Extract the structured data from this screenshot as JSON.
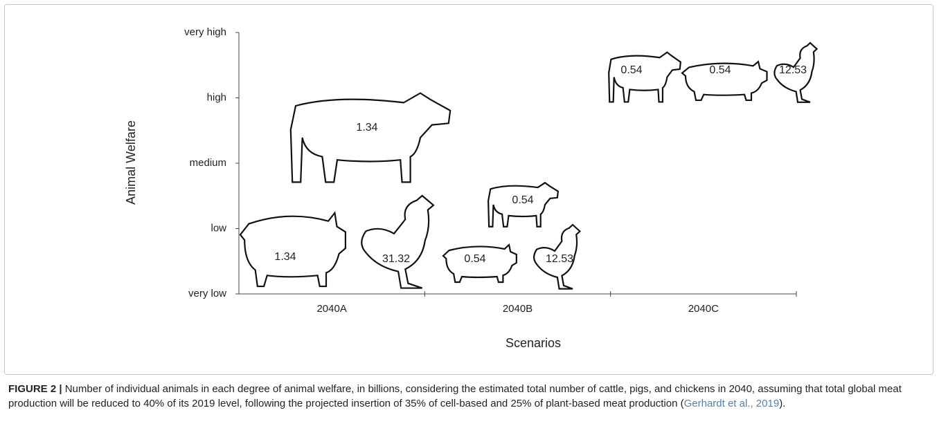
{
  "chart_data": {
    "type": "pictogram",
    "ylabel": "Animal Welfare",
    "xlabel": "Scenarios",
    "categories": [
      "2040A",
      "2040B",
      "2040C"
    ],
    "ylevels": [
      "very low",
      "low",
      "medium",
      "high",
      "very high"
    ],
    "values": [
      [
        1.34,
        1.34,
        31.32
      ],
      [
        0.54,
        0.54,
        12.53
      ],
      [
        0.54,
        0.54,
        12.53
      ]
    ]
  },
  "caption": {
    "label": "FIGURE 2 |",
    "text": " Number of individual animals in each degree of animal welfare, in billions, considering the estimated total number of cattle, pigs, and chickens in 2040, assuming that total global meat production will be reduced to 40% of its 2019 level, following the projected insertion of 35% of cell-based and 25% of plant-based meat production (",
    "citation": "Gerhardt et al., 2019",
    "tail": ")."
  }
}
